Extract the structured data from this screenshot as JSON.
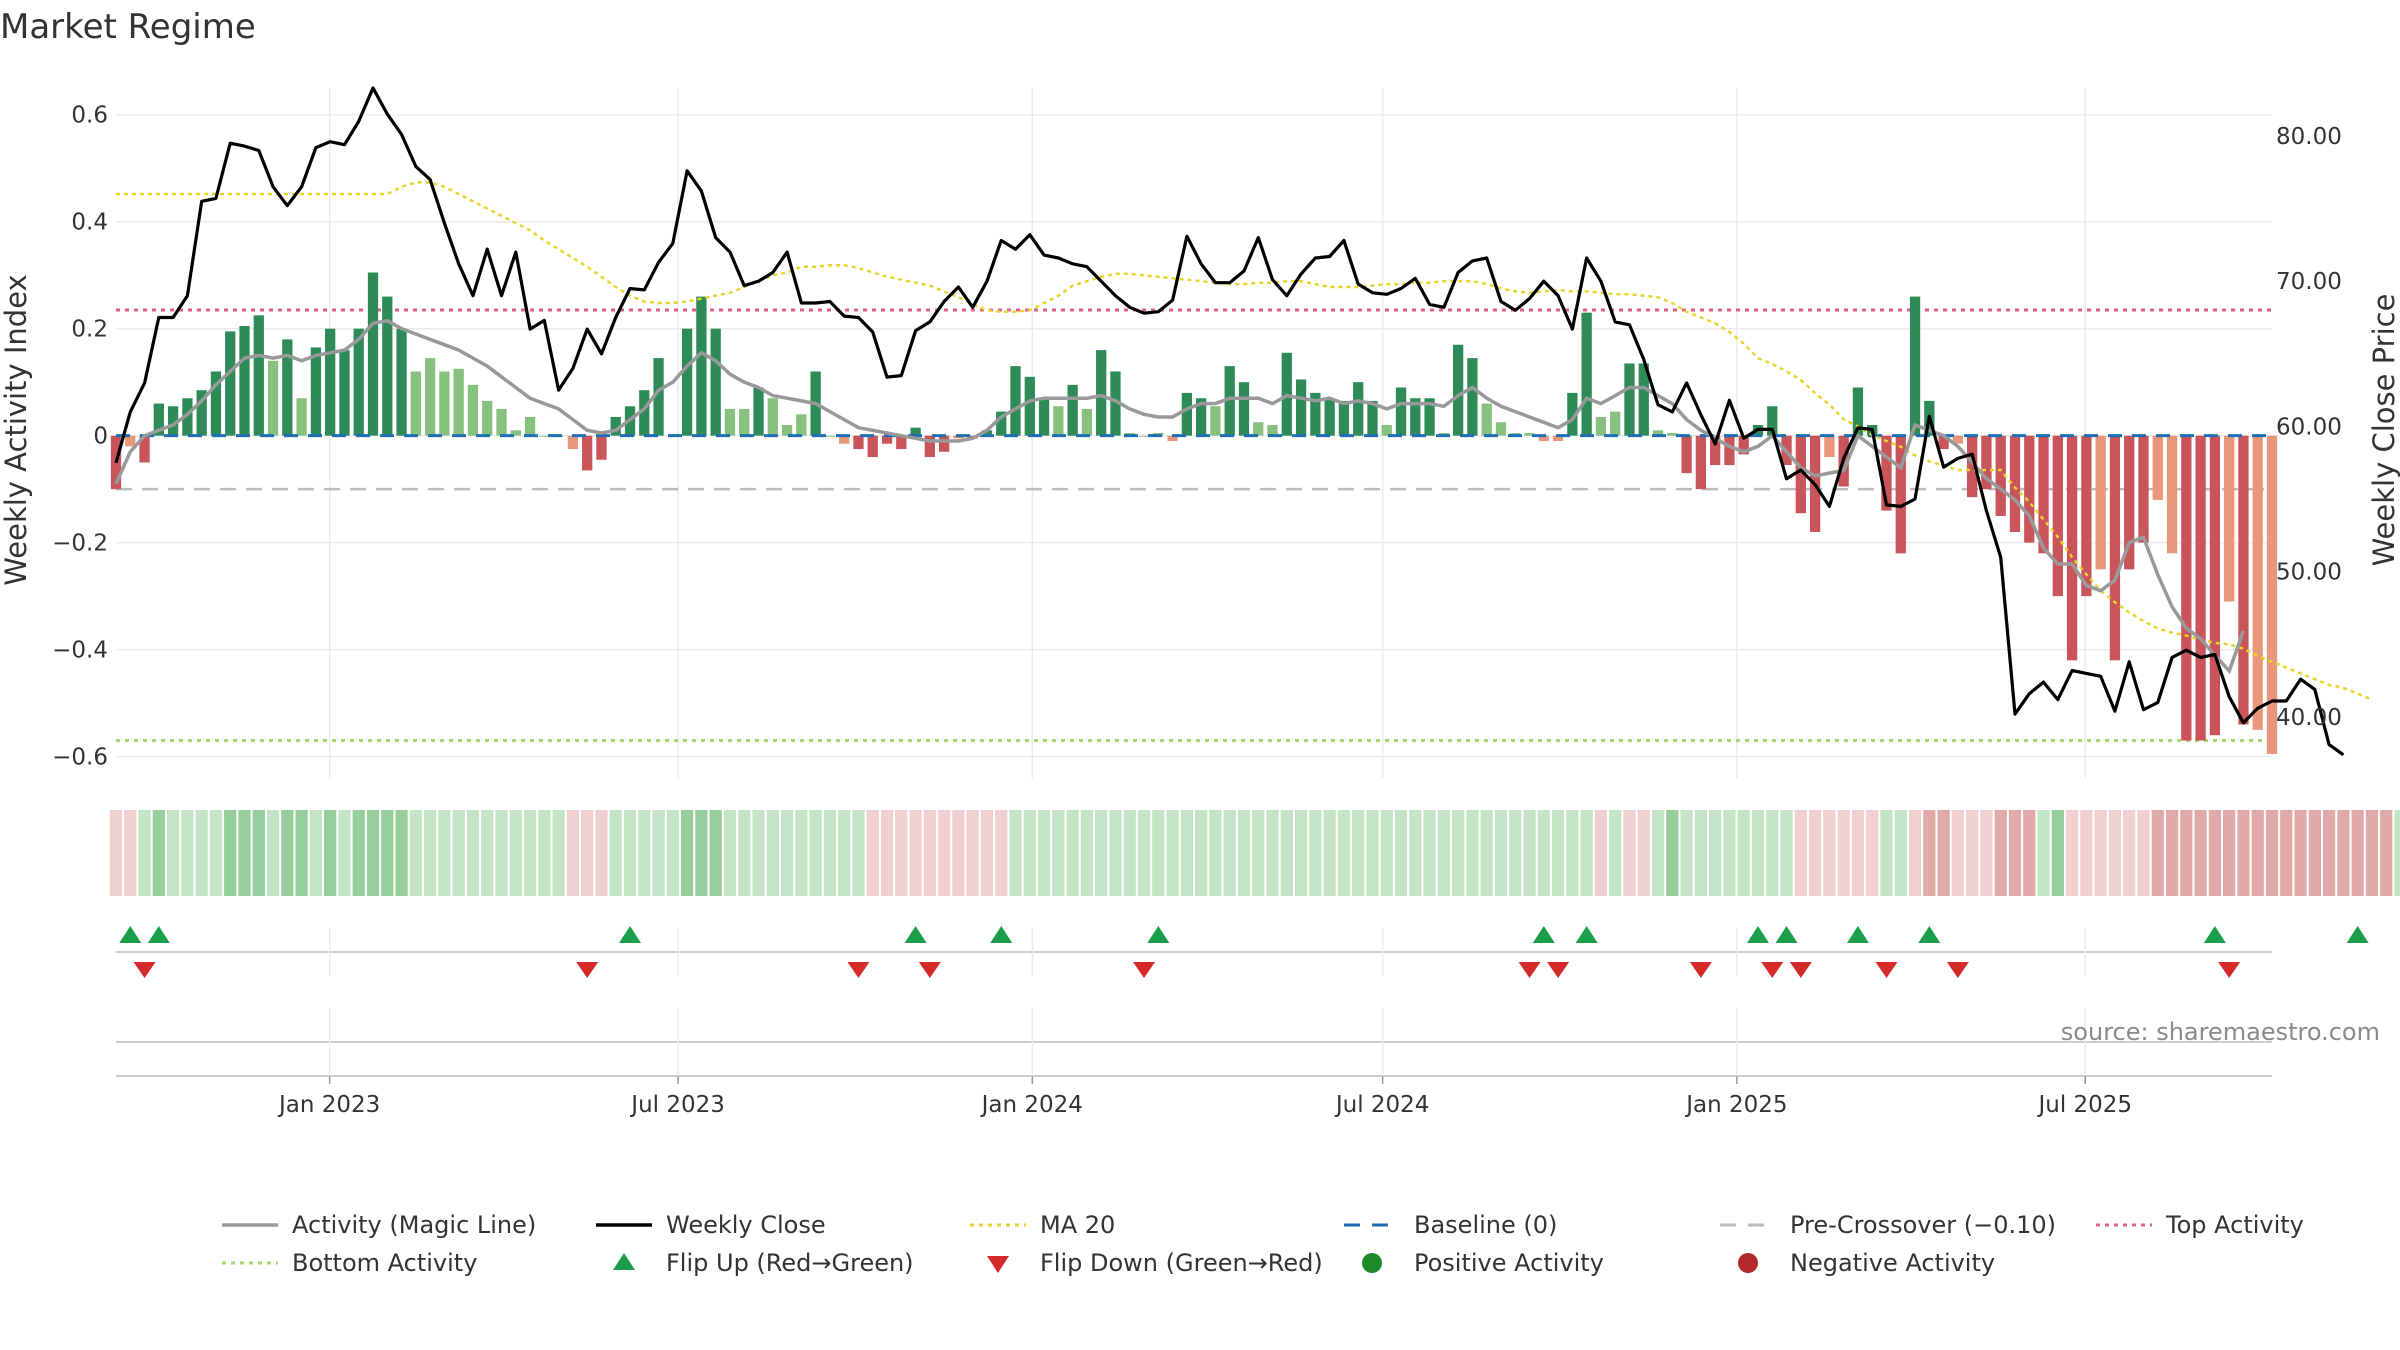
{
  "chart_data": {
    "type": "bar",
    "title": "Market Regime",
    "ylabel_left": "Weekly Activity Index",
    "ylabel_right": "Weekly Close Price",
    "source": "source: sharemaestro.com",
    "x_range": [
      "2022-09-12",
      "2025-10-06"
    ],
    "left_ylim": [
      -0.64,
      0.65
    ],
    "left_ticks": [
      {
        "v": 0.6,
        "label": "0.6"
      },
      {
        "v": 0.4,
        "label": "0.4"
      },
      {
        "v": 0.2,
        "label": "0.2"
      },
      {
        "v": 0.0,
        "label": "0"
      },
      {
        "v": -0.2,
        "label": "−0.2"
      },
      {
        "v": -0.4,
        "label": "−0.4"
      },
      {
        "v": -0.6,
        "label": "−0.6"
      }
    ],
    "right_ylim": [
      35.8,
      83.3
    ],
    "right_ticks": [
      {
        "v": 80,
        "label": "80.00"
      },
      {
        "v": 70,
        "label": "70.00"
      },
      {
        "v": 60,
        "label": "60.00"
      },
      {
        "v": 50,
        "label": "50.00"
      },
      {
        "v": 40,
        "label": "40.00"
      }
    ],
    "x_ticks": [
      {
        "date": "2023-01-01",
        "label": "Jan 2023"
      },
      {
        "date": "2023-07-01",
        "label": "Jul 2023"
      },
      {
        "date": "2024-01-01",
        "label": "Jan 2024"
      },
      {
        "date": "2024-07-01",
        "label": "Jul 2024"
      },
      {
        "date": "2025-01-01",
        "label": "Jan 2025"
      },
      {
        "date": "2025-07-01",
        "label": "Jul 2025"
      }
    ],
    "reference_lines": {
      "baseline": 0,
      "pre_crossover": -0.1,
      "top_activity": 0.235,
      "bottom_activity": -0.57
    },
    "activity": [
      -0.1,
      -0.02,
      -0.05,
      0.06,
      0.055,
      0.07,
      0.085,
      0.12,
      0.195,
      0.205,
      0.225,
      0.14,
      0.18,
      0.07,
      0.165,
      0.2,
      0.16,
      0.2,
      0.305,
      0.26,
      0.2,
      0.12,
      0.145,
      0.12,
      0.125,
      0.095,
      0.065,
      0.05,
      0.01,
      0.035,
      0,
      0,
      -0.025,
      -0.065,
      -0.045,
      0.035,
      0.055,
      0.085,
      0.145,
      0,
      0.2,
      0.26,
      0.2,
      0.05,
      0.05,
      0.09,
      0.07,
      0.02,
      0.04,
      0.12,
      0,
      -0.015,
      -0.025,
      -0.04,
      -0.015,
      -0.025,
      0.015,
      -0.04,
      -0.03,
      -0.005,
      -0.005,
      0.01,
      0.045,
      0.13,
      0.11,
      0.07,
      0.055,
      0.095,
      0.05,
      0.16,
      0.12,
      0.005,
      0,
      0.005,
      -0.01,
      0.08,
      0.07,
      0.055,
      0.13,
      0.1,
      0.025,
      0.02,
      0.155,
      0.105,
      0.08,
      0.07,
      0.065,
      0.1,
      0.065,
      0.02,
      0.09,
      0.07,
      0.07,
      0.005,
      0.17,
      0.145,
      0.06,
      0.025,
      0.005,
      0.005,
      -0.01,
      -0.01,
      0.08,
      0.23,
      0.035,
      0.045,
      0.135,
      0.135,
      0.01,
      0.005,
      -0.07,
      -0.1,
      -0.055,
      -0.055,
      -0.035,
      0.02,
      0.055,
      -0.055,
      -0.145,
      -0.18,
      -0.04,
      -0.095,
      0.09,
      0.02,
      -0.14,
      -0.22,
      0.26,
      0.065,
      -0.025,
      -0.015,
      -0.115,
      -0.1,
      -0.15,
      -0.18,
      -0.2,
      -0.22,
      -0.3,
      -0.42,
      -0.3,
      -0.25,
      -0.42,
      -0.25,
      -0.2,
      -0.12,
      -0.22,
      -0.57,
      -0.57,
      -0.56,
      -0.31,
      -0.54,
      -0.55,
      -0.595
    ],
    "magic_line": [
      -0.09,
      -0.03,
      0,
      0.01,
      0.02,
      0.04,
      0.065,
      0.095,
      0.12,
      0.145,
      0.15,
      0.145,
      0.15,
      0.14,
      0.15,
      0.155,
      0.16,
      0.18,
      0.21,
      0.215,
      0.2,
      0.19,
      0.18,
      0.17,
      0.16,
      0.145,
      0.13,
      0.11,
      0.09,
      0.07,
      0.06,
      0.05,
      0.03,
      0.01,
      0.005,
      0.01,
      0.03,
      0.05,
      0.085,
      0.1,
      0.13,
      0.155,
      0.14,
      0.115,
      0.1,
      0.09,
      0.075,
      0.07,
      0.065,
      0.06,
      0.045,
      0.03,
      0.015,
      0.01,
      0.005,
      0,
      -0.005,
      -0.01,
      -0.01,
      -0.01,
      -0.005,
      0.01,
      0.035,
      0.05,
      0.065,
      0.07,
      0.07,
      0.07,
      0.07,
      0.075,
      0.065,
      0.05,
      0.04,
      0.035,
      0.035,
      0.05,
      0.06,
      0.06,
      0.07,
      0.07,
      0.07,
      0.06,
      0.075,
      0.07,
      0.065,
      0.07,
      0.06,
      0.065,
      0.06,
      0.05,
      0.06,
      0.06,
      0.06,
      0.055,
      0.075,
      0.09,
      0.07,
      0.055,
      0.045,
      0.035,
      0.025,
      0.015,
      0.03,
      0.07,
      0.06,
      0.075,
      0.09,
      0.09,
      0.075,
      0.06,
      0.03,
      0.01,
      -0.005,
      -0.02,
      -0.03,
      -0.02,
      0,
      -0.03,
      -0.06,
      -0.075,
      -0.07,
      -0.065,
      0,
      -0.02,
      -0.04,
      -0.06,
      0.02,
      0.01,
      0,
      -0.02,
      -0.05,
      -0.08,
      -0.1,
      -0.12,
      -0.15,
      -0.21,
      -0.24,
      -0.24,
      -0.28,
      -0.29,
      -0.27,
      -0.2,
      -0.19,
      -0.26,
      -0.32,
      -0.36,
      -0.38,
      -0.41,
      -0.44,
      -0.365
    ],
    "weekly_close": [
      57.5,
      61.0,
      63.0,
      67.5,
      67.5,
      69.0,
      75.5,
      75.7,
      79.5,
      79.3,
      79.0,
      76.5,
      75.2,
      76.5,
      79.2,
      79.6,
      79.4,
      81.0,
      83.3,
      81.5,
      80.1,
      77.9,
      77.0,
      74.0,
      71.2,
      69.0,
      72.2,
      69.0,
      72.0,
      66.7,
      67.3,
      62.5,
      64.0,
      66.7,
      65.0,
      67.5,
      69.5,
      69.4,
      71.3,
      72.6,
      77.6,
      76.2,
      73.0,
      72.0,
      69.7,
      70.0,
      70.6,
      72.0,
      68.5,
      68.5,
      68.6,
      67.6,
      67.5,
      66.5,
      63.4,
      63.5,
      66.6,
      67.2,
      68.6,
      69.6,
      68.2,
      70.0,
      72.8,
      72.2,
      73.2,
      71.8,
      71.6,
      71.2,
      71.0,
      70.0,
      69.0,
      68.2,
      67.8,
      67.9,
      68.7,
      73.1,
      71.2,
      69.9,
      69.9,
      70.7,
      73.0,
      70.1,
      69.0,
      70.5,
      71.6,
      71.7,
      72.8,
      69.8,
      69.2,
      69.1,
      69.5,
      70.2,
      68.4,
      68.2,
      70.6,
      71.4,
      71.6,
      68.6,
      68.0,
      68.8,
      70.0,
      69.0,
      66.7,
      71.6,
      70.0,
      67.2,
      67.0,
      64.6,
      61.5,
      61.0,
      63.0,
      60.8,
      58.8,
      61.8,
      59.2,
      59.8,
      59.8,
      56.4,
      57.0,
      56.0,
      54.5,
      57.8,
      59.9,
      59.8,
      54.6,
      54.5,
      55.0,
      60.7,
      57.2,
      57.8,
      58.1,
      54.2,
      51.0,
      40.2,
      41.6,
      42.4,
      41.2,
      43.2,
      43.0,
      42.8,
      40.4,
      43.8,
      40.5,
      41.0,
      44.1,
      44.6,
      44.1,
      44.3,
      41.4,
      39.6,
      40.6,
      41.1,
      41.1,
      42.6,
      41.9,
      38.1,
      37.4
    ],
    "ma20": [
      76.0,
      76.0,
      76.0,
      76.0,
      76.0,
      76.0,
      76.0,
      76.0,
      76.0,
      76.0,
      76.0,
      76.0,
      76.0,
      76.0,
      76.0,
      76.0,
      76.0,
      76.0,
      76.0,
      76.0,
      76.5,
      76.8,
      76.8,
      76.5,
      76.0,
      75.5,
      75.0,
      74.5,
      74.0,
      73.5,
      72.8,
      72.2,
      71.6,
      71.0,
      70.3,
      69.6,
      69.0,
      68.6,
      68.5,
      68.5,
      68.6,
      68.8,
      69.0,
      69.2,
      69.6,
      70.0,
      70.4,
      70.6,
      71.0,
      71.0,
      71.1,
      71.1,
      70.9,
      70.6,
      70.3,
      70.1,
      69.9,
      69.7,
      69.3,
      68.9,
      68.4,
      68.0,
      67.9,
      67.9,
      68.0,
      68.5,
      69.0,
      69.7,
      70.0,
      70.3,
      70.5,
      70.5,
      70.4,
      70.3,
      70.2,
      70.1,
      70.0,
      69.9,
      69.8,
      69.8,
      69.9,
      69.9,
      70.0,
      70.0,
      69.8,
      69.6,
      69.6,
      69.6,
      69.7,
      69.8,
      69.8,
      69.9,
      69.9,
      70.0,
      70.0,
      70.0,
      69.8,
      69.5,
      69.3,
      69.2,
      69.3,
      69.4,
      69.3,
      69.3,
      69.2,
      69.1,
      69.1,
      69.0,
      68.9,
      68.5,
      67.9,
      67.5,
      67.1,
      66.5,
      65.7,
      64.7,
      64.3,
      63.8,
      63.2,
      62.3,
      61.5,
      60.5,
      60.0,
      59.4,
      59.0,
      58.6,
      58.0,
      57.6,
      57.3,
      57.0,
      57.0,
      57.0,
      57.0,
      55.8,
      54.8,
      53.6,
      52.4,
      51.0,
      49.8,
      48.7,
      47.9,
      47.2,
      46.6,
      46.1,
      45.8,
      45.6,
      45.3,
      45.1,
      45.0,
      44.7,
      44.2,
      43.8,
      43.4,
      43.0,
      42.6,
      42.2,
      42.0,
      41.6,
      41.2
    ],
    "regime_levels": [
      -1,
      -1,
      1,
      2,
      1,
      1,
      1,
      1,
      2,
      2,
      2,
      1,
      2,
      2,
      1,
      2,
      1,
      2,
      2,
      2,
      2,
      1,
      1,
      1,
      1,
      1,
      1,
      1,
      1,
      1,
      1,
      1,
      -1,
      -1,
      -1,
      1,
      1,
      1,
      1,
      1,
      2,
      2,
      2,
      1,
      1,
      1,
      1,
      1,
      1,
      1,
      1,
      1,
      1,
      -1,
      -1,
      -1,
      -1,
      -1,
      -1,
      -1,
      -1,
      -1,
      -1,
      1,
      1,
      1,
      1,
      1,
      1,
      1,
      1,
      1,
      1,
      1,
      1,
      1,
      1,
      1,
      1,
      1,
      1,
      1,
      1,
      1,
      1,
      1,
      1,
      1,
      1,
      1,
      1,
      1,
      1,
      1,
      1,
      1,
      1,
      1,
      1,
      1,
      1,
      1,
      1,
      1,
      -1,
      1,
      -1,
      -1,
      1,
      2,
      1,
      1,
      1,
      1,
      1,
      1,
      1,
      1,
      -1,
      -1,
      -1,
      -1,
      -1,
      -1,
      1,
      1,
      -1,
      -2,
      -2,
      -1,
      -1,
      -1,
      -2,
      -2,
      -2,
      1,
      2,
      -1,
      -1,
      -1,
      -1,
      -1,
      -1,
      -2,
      -2,
      -2,
      -2,
      -2,
      -2,
      -2,
      -2,
      -2,
      -2,
      -2,
      -2,
      -2,
      -2,
      -2,
      -2,
      -2,
      1,
      1,
      -3,
      -3,
      -3,
      -3,
      -3,
      -3,
      -3,
      1
    ],
    "flip_up_weeks": [
      1,
      3,
      36,
      56,
      62,
      73,
      100,
      103,
      115,
      117,
      122,
      127,
      147,
      157
    ],
    "flip_down_weeks": [
      2,
      33,
      52,
      57,
      72,
      99,
      101,
      111,
      116,
      118,
      124,
      129,
      148
    ],
    "legend": [
      {
        "label": "Activity (Magic Line)",
        "kind": "line",
        "color": "#999999"
      },
      {
        "label": "Weekly Close",
        "kind": "line",
        "color": "#000000"
      },
      {
        "label": "MA 20",
        "kind": "dotted",
        "color": "#e8d42a"
      },
      {
        "label": "Baseline (0)",
        "kind": "dashed",
        "color": "#1f6fb4"
      },
      {
        "label": "Pre-Crossover (−0.10)",
        "kind": "dashed",
        "color": "#bbbbbb"
      },
      {
        "label": "Top Activity",
        "kind": "dotted",
        "color": "#e0608a"
      },
      {
        "label": "Bottom Activity",
        "kind": "dotted",
        "color": "#a7d96c"
      },
      {
        "label": "Flip Up (Red→Green)",
        "kind": "triangle-up",
        "color": "#1a9e4a"
      },
      {
        "label": "Flip Down (Green→Red)",
        "kind": "triangle-down",
        "color": "#d42a2a"
      },
      {
        "label": "Positive Activity",
        "kind": "circle",
        "color": "#1f8a2a"
      },
      {
        "label": "Negative Activity",
        "kind": "circle",
        "color": "#b22a2a"
      }
    ],
    "colors": {
      "positive_strong": "#2e8b57",
      "positive_light": "#86c17e",
      "negative_strong": "#c9555a",
      "negative_light": "#e8977a",
      "grid": "#ebebeb"
    }
  }
}
